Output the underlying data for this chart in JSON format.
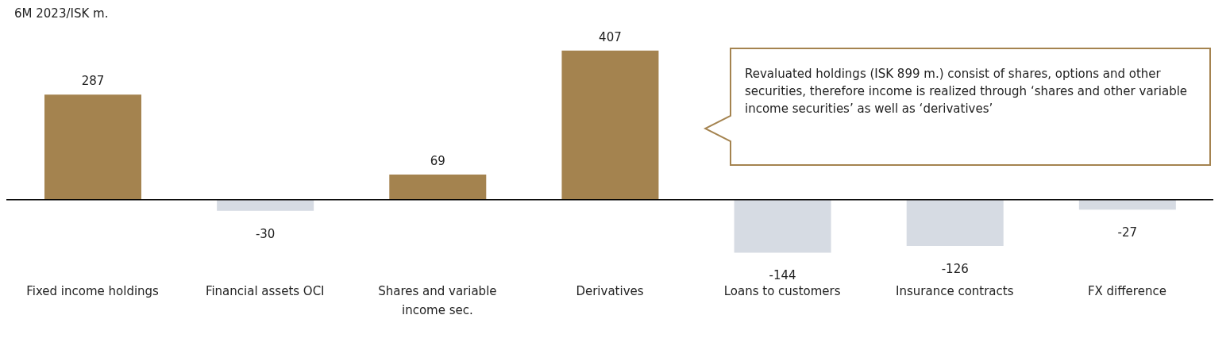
{
  "chart_data": {
    "type": "bar",
    "title": "6M 2023/ISK m.",
    "categories": [
      "Fixed income holdings",
      "Financial assets OCI",
      "Shares and variable income sec.",
      "Derivatives",
      "Loans to customers",
      "Insurance contracts",
      "FX difference"
    ],
    "values": [
      287,
      -30,
      69,
      407,
      -144,
      -126,
      -27
    ],
    "colors": [
      "#a4834f",
      "#d6dbe3",
      "#a4834f",
      "#a4834f",
      "#d6dbe3",
      "#d6dbe3",
      "#d6dbe3"
    ],
    "data_labels": true,
    "annotations": [
      "Revaluated holdings (ISK 899 m.) consist of shares, options and other securities, therefore income is realized through ‘shares and other variable income securities’ as well as ‘derivatives’"
    ]
  }
}
